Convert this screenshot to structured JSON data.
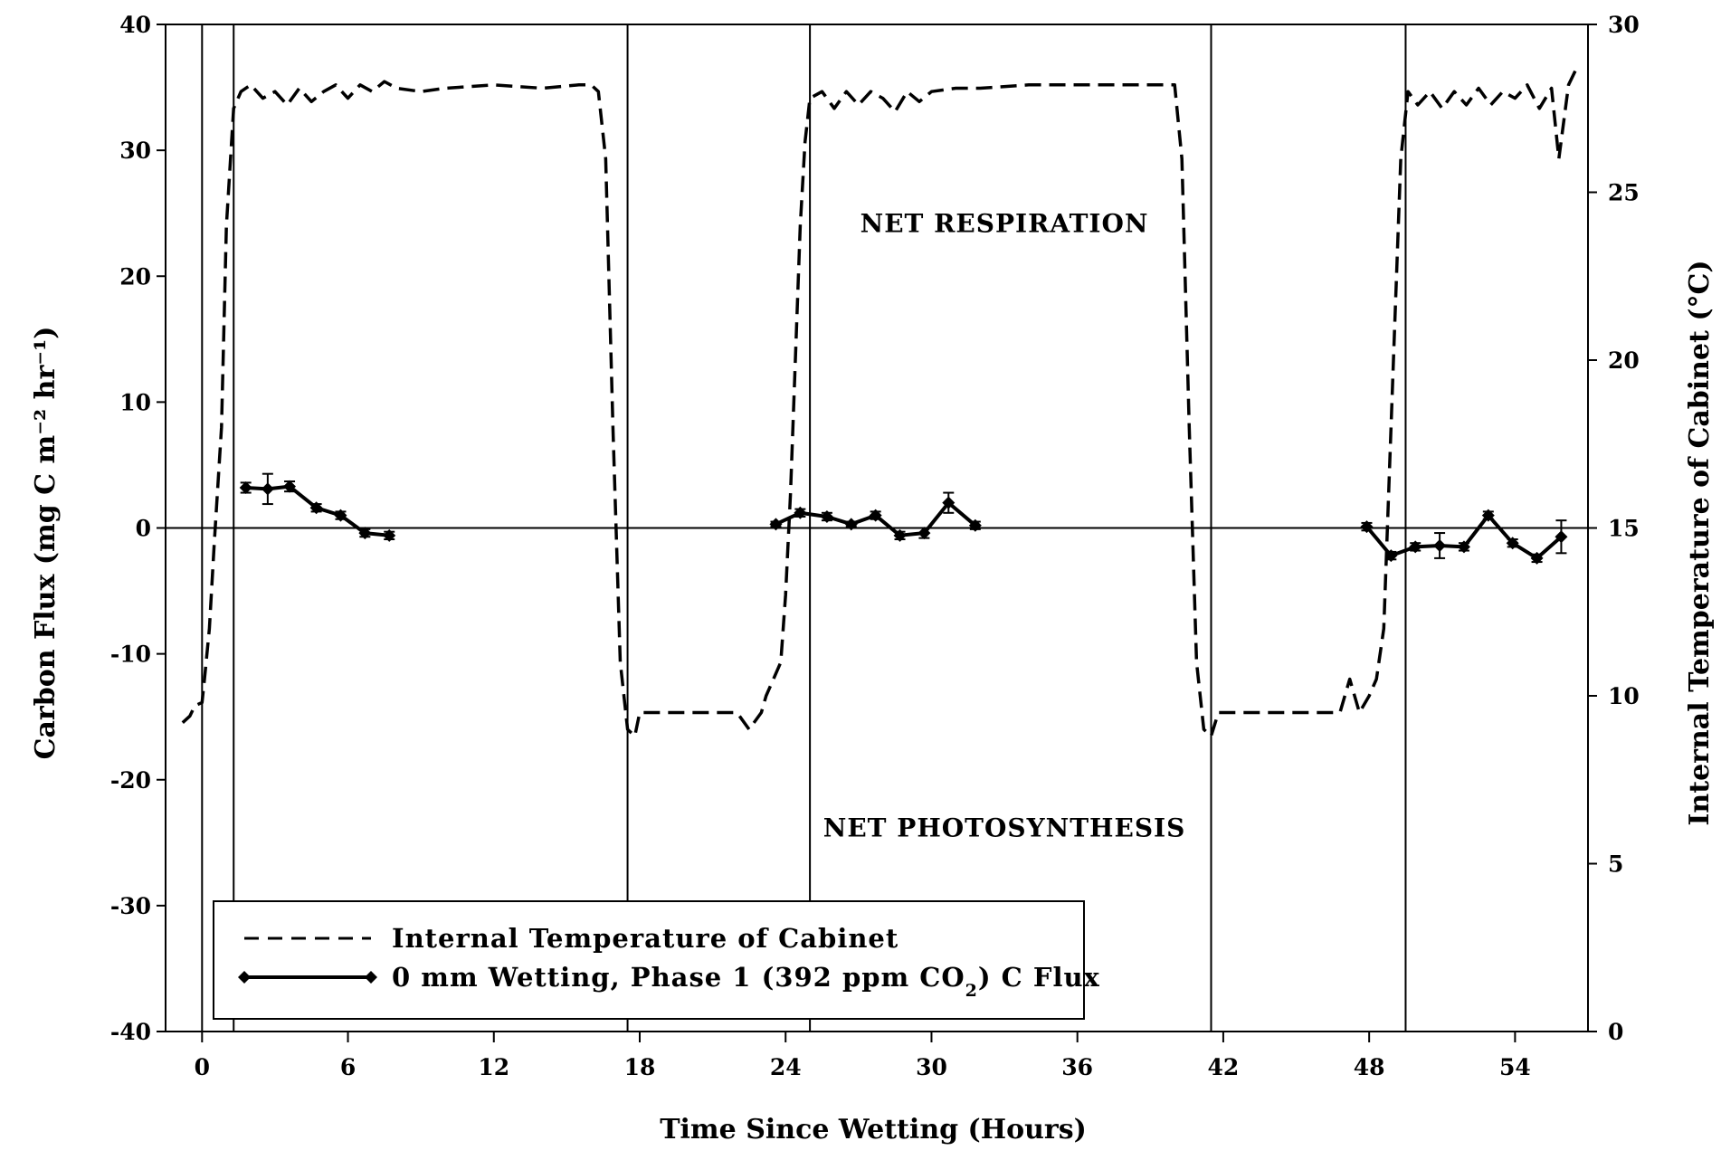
{
  "chart_data": {
    "type": "line",
    "xlabel": "Time Since Wetting (Hours)",
    "ylabel": "Carbon Flux (mg C m⁻² hr⁻¹)",
    "y2label": "Internal Temperature of Cabinet (°C)",
    "xlim": [
      -1.5,
      57
    ],
    "ylim": [
      -40,
      40
    ],
    "y2lim": [
      0,
      30
    ],
    "xticks": [
      0,
      6,
      12,
      18,
      24,
      30,
      36,
      42,
      48,
      54
    ],
    "yticks": [
      -40,
      -30,
      -20,
      -10,
      0,
      10,
      20,
      30,
      40
    ],
    "y2ticks": [
      0,
      5,
      10,
      15,
      20,
      25,
      30
    ],
    "vertical_lines": [
      0,
      1.3,
      17.5,
      25.0,
      41.5,
      49.5
    ],
    "legend_position": "bottom-left",
    "grid": false,
    "annotations": [
      {
        "text": "NET RESPIRATION",
        "x": 33,
        "y": 23.5
      },
      {
        "text": "NET PHOTOSYNTHESIS",
        "x": 33,
        "y": -24.5
      }
    ],
    "series": [
      {
        "name": "Internal Temperature of Cabinet",
        "axis": "right",
        "style": "dashed",
        "x": [
          -0.8,
          -0.5,
          -0.3,
          0,
          0.1,
          0.3,
          0.5,
          0.8,
          1.0,
          1.3,
          1.6,
          2.0,
          2.5,
          3.0,
          3.5,
          4.0,
          4.5,
          5.0,
          5.5,
          6.0,
          6.5,
          7.0,
          7.5,
          8.0,
          9.0,
          10.0,
          12.0,
          14.0,
          15.5,
          16.0,
          16.3,
          16.6,
          16.9,
          17.2,
          17.5,
          17.8,
          18.0,
          20.0,
          22.0,
          22.5,
          23.0,
          23.2,
          23.5,
          23.8,
          24.0,
          24.2,
          24.4,
          24.6,
          24.8,
          25.0,
          25.5,
          26.0,
          26.5,
          27.0,
          27.5,
          28.0,
          28.5,
          29.0,
          29.5,
          30.0,
          31.0,
          32.0,
          34.0,
          36.0,
          38.0,
          40.0,
          40.3,
          40.6,
          40.9,
          41.2,
          41.5,
          41.8,
          42.0,
          44.0,
          46.0,
          46.8,
          47.2,
          47.6,
          48.0,
          48.3,
          48.6,
          49.0,
          49.3,
          49.6,
          50.0,
          50.5,
          51.0,
          51.5,
          52.0,
          52.5,
          53.0,
          53.5,
          54.0,
          54.5,
          55.0,
          55.5,
          55.8,
          56.2,
          56.6
        ],
        "values": [
          9.2,
          9.4,
          9.7,
          9.8,
          10.5,
          12.0,
          14.5,
          18.0,
          24.0,
          27.5,
          28.0,
          28.2,
          27.8,
          28.0,
          27.6,
          28.1,
          27.7,
          28.0,
          28.2,
          27.8,
          28.2,
          28.0,
          28.3,
          28.1,
          28.0,
          28.1,
          28.2,
          28.1,
          28.2,
          28.2,
          28.0,
          26.0,
          18.0,
          11.0,
          9.0,
          8.8,
          9.5,
          9.5,
          9.5,
          9.0,
          9.5,
          10.0,
          10.5,
          11.0,
          13.0,
          16.0,
          20.0,
          24.0,
          26.5,
          27.8,
          28.0,
          27.5,
          28.0,
          27.6,
          28.0,
          27.8,
          27.4,
          28.0,
          27.7,
          28.0,
          28.1,
          28.1,
          28.2,
          28.2,
          28.2,
          28.2,
          26.0,
          18.0,
          11.0,
          9.0,
          8.8,
          9.5,
          9.5,
          9.5,
          9.5,
          9.5,
          10.5,
          9.5,
          10.0,
          10.5,
          12.0,
          20.0,
          26.0,
          28.0,
          27.6,
          28.0,
          27.5,
          28.0,
          27.6,
          28.1,
          27.6,
          28.0,
          27.8,
          28.2,
          27.5,
          28.1,
          26.0,
          28.2,
          28.8
        ]
      },
      {
        "name": "0 mm Wetting, Phase 1 (392 ppm CO2) C Flux",
        "axis": "left",
        "style": "solid-marker",
        "x": [
          1.8,
          2.7,
          3.6,
          4.7,
          5.7,
          6.7,
          7.7,
          23.6,
          24.6,
          25.7,
          26.7,
          27.7,
          28.7,
          29.7,
          30.7,
          31.8,
          47.9,
          48.9,
          49.9,
          50.9,
          51.9,
          52.9,
          53.9,
          54.9,
          55.9
        ],
        "values": [
          3.2,
          3.1,
          3.3,
          1.6,
          1.0,
          -0.4,
          -0.6,
          0.3,
          1.2,
          0.9,
          0.3,
          1.0,
          -0.6,
          -0.4,
          2.0,
          0.2,
          0.1,
          -2.2,
          -1.5,
          -1.4,
          -1.5,
          1.0,
          -1.2,
          -2.4,
          -0.7
        ],
        "error": [
          0.4,
          1.2,
          0.4,
          0.3,
          0.3,
          0.3,
          0.3,
          0.2,
          0.3,
          0.3,
          0.2,
          0.3,
          0.3,
          0.4,
          0.8,
          0.3,
          0.3,
          0.3,
          0.3,
          1.0,
          0.3,
          0.3,
          0.3,
          0.3,
          1.3
        ]
      }
    ]
  },
  "legend": {
    "items": [
      {
        "label": "Internal Temperature of Cabinet",
        "style": "dashed"
      },
      {
        "label": "0 mm Wetting, Phase 1 (392 ppm CO",
        "sub": "2",
        "tail": ") C Flux",
        "style": "solid-marker"
      }
    ]
  }
}
